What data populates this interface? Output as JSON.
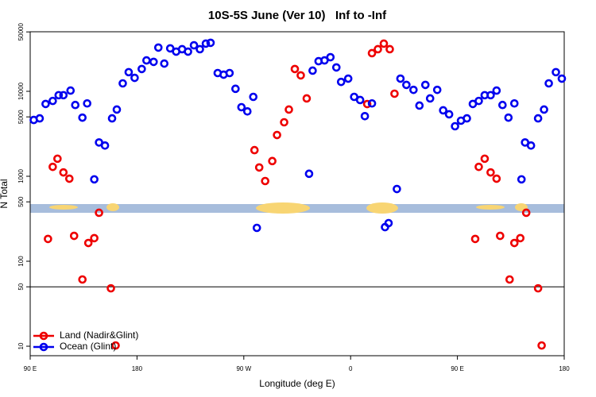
{
  "chart_data": {
    "type": "scatter",
    "title": "10S-5S June (Ver 10)   Inf to -Inf",
    "xlabel": "Longitude (deg E)",
    "ylabel": "N Total",
    "ylog": true,
    "xlim": [
      90,
      540
    ],
    "ylim": [
      7.73,
      50200
    ],
    "xticks": [
      {
        "value": 90,
        "label": "90 E"
      },
      180,
      {
        "value": 270,
        "label": "90 W"
      },
      {
        "value": 360,
        "label": "0"
      },
      {
        "value": 450,
        "label": "90 E"
      },
      {
        "value": 540,
        "label": "180"
      }
    ],
    "yticks": [
      10,
      50,
      100,
      500,
      1000,
      5000,
      10000,
      50000
    ],
    "hline": 50,
    "legend": "lower left",
    "series": [
      {
        "name": "Land (Nadir&Glint)",
        "color": "#ee0000",
        "x": [
          105,
          109,
          113,
          118,
          123,
          127,
          134,
          139,
          144,
          148,
          158,
          162,
          279,
          283,
          288,
          294,
          298,
          304,
          308,
          313,
          318,
          323,
          374,
          378,
          383,
          388,
          393,
          397,
          465,
          468,
          473,
          478,
          483,
          486,
          494,
          498,
          503,
          508,
          518,
          521
        ],
        "values": [
          183,
          1290,
          1610,
          1110,
          937,
          199,
          61,
          164,
          187,
          372,
          48,
          10.2,
          2030,
          1270,
          879,
          1510,
          3060,
          4320,
          6100,
          18300,
          15400,
          8240,
          7080,
          28100,
          31300,
          36400,
          31300,
          9370,
          183,
          1290,
          1610,
          1110,
          937,
          199,
          61,
          164,
          187,
          372,
          48,
          10.2
        ]
      },
      {
        "name": "Ocean (Glint)",
        "color": "#0000ee",
        "x": [
          93,
          98,
          103,
          109,
          114,
          118,
          124,
          128,
          134,
          138,
          144,
          148,
          153,
          159,
          163,
          168,
          173,
          178,
          184,
          188,
          194,
          198,
          203,
          208,
          213,
          218,
          223,
          228,
          233,
          238,
          242,
          248,
          253,
          258,
          263,
          268,
          273,
          278,
          281,
          325,
          328,
          333,
          338,
          343,
          348,
          352,
          358,
          363,
          368,
          372,
          378,
          389,
          392,
          399,
          402,
          407,
          413,
          418,
          423,
          427,
          433,
          438,
          443,
          448,
          453,
          458,
          463,
          468,
          473,
          478,
          483,
          488,
          493,
          498,
          504,
          507,
          512,
          518,
          523,
          527,
          533,
          538
        ],
        "values": [
          4600,
          4800,
          7100,
          7700,
          9000,
          9000,
          10200,
          6900,
          4900,
          7200,
          920,
          2500,
          2300,
          4800,
          6100,
          12400,
          16800,
          14400,
          18300,
          23100,
          22200,
          32700,
          21200,
          32000,
          29300,
          31300,
          29300,
          34800,
          31300,
          36400,
          37200,
          16400,
          15700,
          16400,
          10700,
          6500,
          5800,
          8600,
          247,
          1070,
          17500,
          22600,
          23100,
          25200,
          19100,
          12900,
          14100,
          8600,
          7900,
          5100,
          7200,
          252,
          281,
          708,
          14100,
          11900,
          10400,
          6790,
          11900,
          8240,
          10400,
          5970,
          5360,
          3880,
          4510,
          4800,
          7100,
          7700,
          9000,
          9000,
          10200,
          6900,
          4900,
          7200,
          920,
          2500,
          2300,
          4800,
          6100,
          12400,
          16800,
          14100
        ]
      }
    ]
  }
}
